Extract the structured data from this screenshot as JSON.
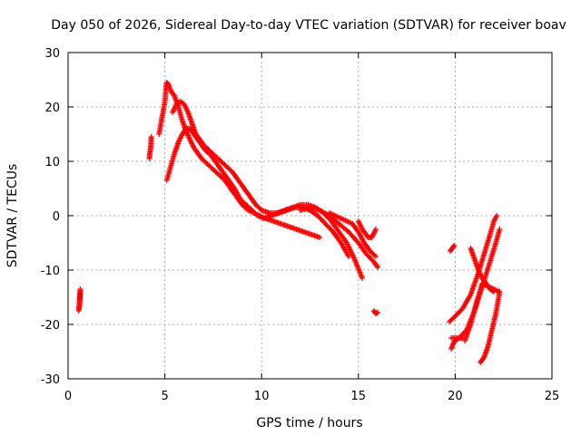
{
  "chart_data": {
    "type": "scatter",
    "title": "Day 050 of 2026, Sidereal Day-to-day VTEC variation (SDTVAR) for receiver boav",
    "xlabel": "GPS time / hours",
    "ylabel": "SDTVAR / TECUs",
    "xlim": [
      0,
      25
    ],
    "ylim": [
      -30,
      30
    ],
    "grid": true,
    "x_ticks": [
      0,
      5,
      10,
      15,
      20,
      25
    ],
    "y_ticks": [
      -30,
      -20,
      -10,
      0,
      10,
      20,
      30
    ],
    "marker": "+",
    "marker_color": "#ff0000",
    "series": [
      {
        "name": "t0",
        "x": [
          0.55,
          0.58,
          0.6,
          0.62,
          0.63,
          0.6,
          0.57
        ],
        "y": [
          -17.5,
          -16.5,
          -15.5,
          -14.5,
          -13.5,
          -16,
          -17
        ]
      },
      {
        "name": "t1",
        "x": [
          4.2,
          4.22,
          4.25,
          4.28,
          4.3
        ],
        "y": [
          10.5,
          11.5,
          12,
          13,
          14.5
        ]
      },
      {
        "name": "t2",
        "x": [
          4.7,
          4.8,
          4.9,
          5.0,
          5.05,
          5.1,
          5.2,
          5.3,
          5.5,
          5.7,
          5.9,
          6.1,
          6.3,
          6.5,
          6.7,
          6.9,
          7.2,
          7.5,
          7.8,
          8.1,
          8.4,
          8.7,
          9.0,
          9.3,
          9.6,
          9.9,
          10.2,
          10.6,
          11.0,
          11.4,
          11.8,
          12.2,
          12.6,
          13.0
        ],
        "y": [
          15,
          17,
          19,
          21,
          23,
          24.5,
          24,
          23,
          22,
          20,
          17.5,
          15.5,
          14,
          12.5,
          11.5,
          10.5,
          9.5,
          8.5,
          7.5,
          6.5,
          5,
          3.5,
          2,
          1,
          0.5,
          0,
          -0.5,
          -1,
          -1.5,
          -2,
          -2.5,
          -3,
          -3.5,
          -4
        ]
      },
      {
        "name": "t3",
        "x": [
          5.1,
          5.3,
          5.5,
          5.7,
          5.9,
          6.1,
          6.3,
          6.5,
          6.7,
          6.9,
          7.1,
          7.4,
          7.7,
          8.0,
          8.3,
          8.6,
          8.9,
          9.2,
          9.5,
          9.8,
          10.1,
          10.5,
          10.9,
          11.3,
          11.7,
          12.1,
          12.5,
          12.9,
          13.3,
          13.7,
          14.1,
          14.5
        ],
        "y": [
          6.5,
          9,
          11.5,
          13.5,
          15,
          16,
          16,
          15,
          14,
          13,
          12,
          11,
          9.5,
          8,
          6.5,
          5,
          3,
          2,
          1,
          0,
          -0.5,
          0,
          0.5,
          1,
          1.5,
          1.5,
          1,
          0,
          -1.5,
          -3,
          -5,
          -7.5
        ]
      },
      {
        "name": "t4",
        "x": [
          5.4,
          5.6,
          5.8,
          6.0,
          6.2,
          6.4,
          6.6,
          6.8,
          7.0,
          7.3,
          7.6,
          7.9,
          8.2,
          8.5,
          8.8,
          9.1,
          9.4,
          9.7,
          10.0,
          10.4,
          10.8,
          11.2,
          11.6,
          12.0,
          12.4,
          12.8,
          13.2,
          13.6,
          14.0,
          14.4,
          14.8,
          15.2
        ],
        "y": [
          19,
          20.5,
          21,
          20.5,
          19,
          17,
          15,
          14,
          13,
          12,
          11,
          10,
          9,
          8,
          6.5,
          5,
          3.5,
          2,
          1,
          0.5,
          0.5,
          1,
          1.5,
          2,
          2,
          1.5,
          0.5,
          -1,
          -3,
          -5,
          -8,
          -11.5
        ]
      },
      {
        "name": "t5",
        "x": [
          12.0,
          12.5,
          13.0,
          13.5,
          14.0,
          14.5,
          15.0,
          15.4,
          15.8,
          16.0
        ],
        "y": [
          1,
          1.5,
          1,
          0,
          -1.5,
          -3,
          -5,
          -7,
          -8.5,
          -9.5
        ]
      },
      {
        "name": "t6",
        "x": [
          13.5,
          13.8,
          14.1,
          14.4,
          14.7,
          15.0,
          15.3,
          15.6,
          15.9
        ],
        "y": [
          0.5,
          0,
          -0.5,
          -1,
          -1.5,
          -3,
          -5,
          -6.5,
          -7.5
        ]
      },
      {
        "name": "t7",
        "x": [
          15.0,
          15.2,
          15.5,
          15.7,
          15.9
        ],
        "y": [
          -1,
          -2.5,
          -4,
          -4,
          -2.5
        ]
      },
      {
        "name": "t8",
        "x": [
          15.8,
          15.9,
          16.0
        ],
        "y": [
          -17.5,
          -18,
          -17.8
        ]
      },
      {
        "name": "t9",
        "x": [
          19.75,
          19.85,
          19.95
        ],
        "y": [
          -6.5,
          -6,
          -5.5
        ]
      },
      {
        "name": "t10",
        "x": [
          19.7,
          20.0,
          20.4,
          20.8,
          21.2,
          21.5,
          21.8,
          22.0,
          22.15
        ],
        "y": [
          -19.5,
          -18.5,
          -17,
          -14.5,
          -10.5,
          -7,
          -3.5,
          -1,
          0
        ]
      },
      {
        "name": "t11",
        "x": [
          19.8,
          20.2,
          20.6,
          21.0,
          21.4,
          21.8,
          22.1,
          22.3
        ],
        "y": [
          -22.5,
          -22.5,
          -21,
          -17.5,
          -13,
          -8.5,
          -5,
          -2.5
        ]
      },
      {
        "name": "t12",
        "x": [
          19.8,
          19.9,
          20.0,
          20.2,
          20.4
        ],
        "y": [
          -24.5,
          -23.5,
          -23,
          -22.5,
          -22.5
        ]
      },
      {
        "name": "t13",
        "x": [
          20.5,
          20.8,
          21.1,
          21.4,
          21.7,
          22.0,
          22.3
        ],
        "y": [
          -23,
          -20,
          -16,
          -12.5,
          -13,
          -13.5,
          -14
        ]
      },
      {
        "name": "t14",
        "x": [
          20.8,
          21.0,
          21.2,
          21.4,
          21.6,
          21.8,
          22.0
        ],
        "y": [
          -6,
          -8,
          -10,
          -11.5,
          -12.5,
          -13.5,
          -14
        ]
      },
      {
        "name": "t15",
        "x": [
          21.3,
          21.5,
          21.7,
          21.9,
          22.1,
          22.2,
          22.3
        ],
        "y": [
          -27,
          -26,
          -24,
          -21,
          -18,
          -16,
          -14
        ]
      }
    ]
  }
}
